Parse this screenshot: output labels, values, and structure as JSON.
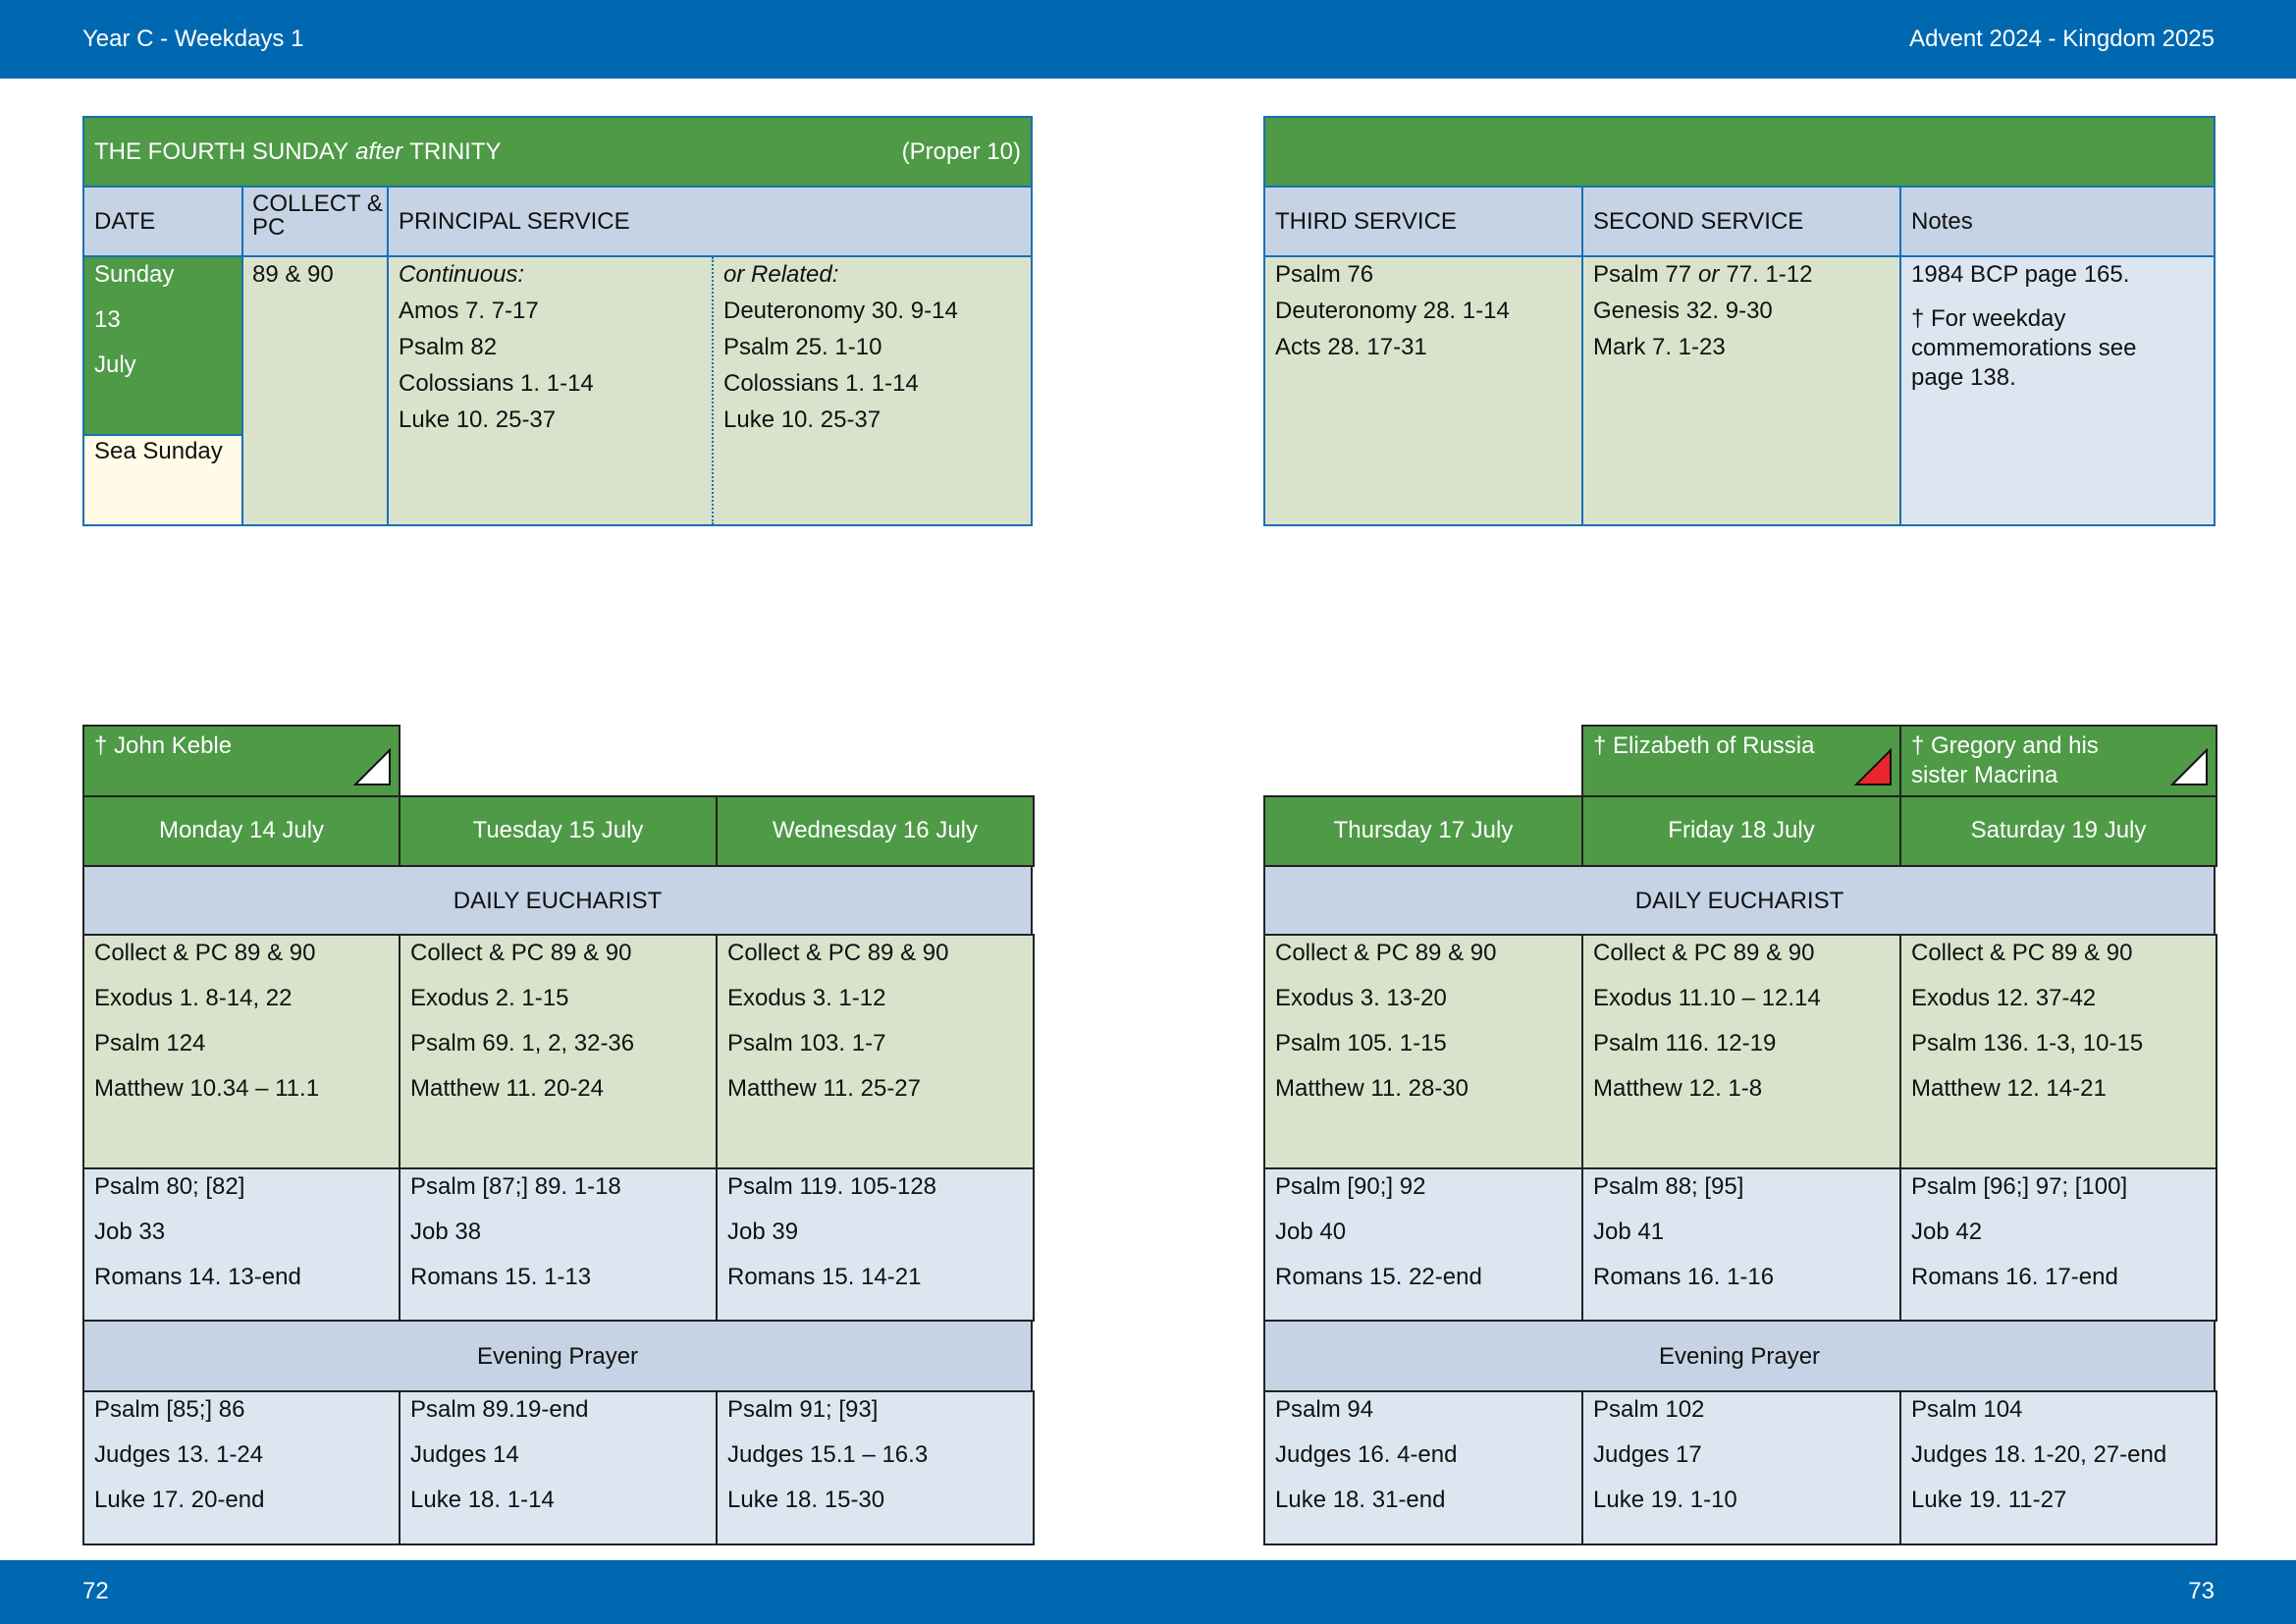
{
  "header": {
    "left": "Year C - Weekdays 1",
    "right": "Advent  2024 - Kingdom 2025"
  },
  "footer": {
    "left_page": "72",
    "right_page": "73"
  },
  "sunday": {
    "title": {
      "main": "THE FOURTH SUNDAY",
      "italic": "after",
      "end": "TRINITY"
    },
    "proper": "(Proper 10)",
    "headers": {
      "date": "DATE",
      "collect": "COLLECT & PC",
      "principal": "PRINCIPAL SERVICE",
      "third": "THIRD SERVICE",
      "second": "SECOND SERVICE",
      "notes": "Notes"
    },
    "date": [
      "Sunday",
      "13",
      "July"
    ],
    "sea": "Sea Sunday",
    "collect": "89 & 90",
    "continuous": {
      "label": "Continuous:",
      "lines": [
        "Amos 7. 7-17",
        "Psalm 82",
        "Colossians 1. 1-14",
        "Luke 10. 25-37"
      ]
    },
    "related": {
      "label": "or Related:",
      "lines": [
        "Deuteronomy 30. 9-14",
        "Psalm 25. 1-10",
        "Colossians 1. 1-14",
        "Luke 10. 25-37"
      ]
    },
    "third": [
      "Psalm 76",
      "Deuteronomy 28. 1-14",
      "Acts 28. 17-31"
    ],
    "second": {
      "first": {
        "a": "Psalm 77",
        "or": "or",
        "b": "77. 1-12"
      },
      "lines": [
        "Genesis 32. 9-30",
        "Mark 7. 1-23"
      ]
    },
    "notes": [
      "1984 BCP page 165.",
      "† For weekday commemorations see page 138."
    ]
  },
  "weeks": [
    {
      "eucharist_label": "DAILY EUCHARIST",
      "evening_label": "Evening Prayer",
      "days": [
        {
          "date": "Monday 14 July",
          "commemoration": "† John Keble",
          "marker": "#ffffff",
          "eucharist": [
            "Collect & PC 89 & 90",
            "Exodus 1. 8-14, 22",
            "Psalm 124",
            "Matthew 10.34 – 11.1"
          ],
          "morning": [
            "Psalm 80; [82]",
            "Job 33",
            "Romans 14. 13-end"
          ],
          "evening": [
            "Psalm [85;] 86",
            "Judges 13. 1-24",
            "Luke 17. 20-end"
          ]
        },
        {
          "date": "Tuesday 15 July",
          "eucharist": [
            "Collect & PC 89 & 90",
            "Exodus 2. 1-15",
            "Psalm 69. 1, 2, 32-36",
            "Matthew 11. 20-24"
          ],
          "morning": [
            "Psalm [87;] 89. 1-18",
            "Job 38",
            "Romans 15. 1-13"
          ],
          "evening": [
            "Psalm 89.19-end",
            "Judges 14",
            "Luke 18. 1-14"
          ]
        },
        {
          "date": "Wednesday 16 July",
          "eucharist": [
            "Collect & PC 89 & 90",
            "Exodus 3. 1-12",
            "Psalm 103. 1-7",
            "Matthew 11. 25-27"
          ],
          "morning": [
            "Psalm 119. 105-128",
            "Job 39",
            "Romans 15. 14-21"
          ],
          "evening": [
            "Psalm 91; [93]",
            "Judges 15.1 – 16.3",
            "Luke 18. 15-30"
          ]
        }
      ]
    },
    {
      "eucharist_label": "DAILY EUCHARIST",
      "evening_label": "Evening Prayer",
      "days": [
        {
          "date": "Thursday 17 July",
          "eucharist": [
            "Collect & PC 89 & 90",
            "Exodus 3. 13-20",
            "Psalm 105. 1-15",
            "Matthew 11. 28-30"
          ],
          "morning": [
            "Psalm [90;] 92",
            "Job 40",
            "Romans 15. 22-end"
          ],
          "evening": [
            "Psalm 94",
            "Judges 16. 4-end",
            "Luke 18. 31-end"
          ]
        },
        {
          "date": "Friday 18 July",
          "commemoration": "† Elizabeth of Russia",
          "marker": "#e8262b",
          "eucharist": [
            "Collect & PC 89 & 90",
            "Exodus 11.10 – 12.14",
            "Psalm 116. 12-19",
            "Matthew 12. 1-8"
          ],
          "morning": [
            "Psalm 88; [95]",
            "Job 41",
            "Romans 16. 1-16"
          ],
          "evening": [
            "Psalm 102",
            "Judges 17",
            "Luke 19. 1-10"
          ]
        },
        {
          "date": "Saturday 19 July",
          "commemoration": "† Gregory and his sister Macrina",
          "marker": "#ffffff",
          "eucharist": [
            "Collect & PC 89 & 90",
            "Exodus 12. 37-42",
            "Psalm 136. 1-3, 10-15",
            "Matthew 12. 14-21"
          ],
          "morning": [
            "Psalm [96;] 97; [100]",
            "Job 42",
            "Romans 16. 17-end"
          ],
          "evening": [
            "Psalm 104",
            "Judges 18. 1-20, 27-end",
            "Luke 19. 11-27"
          ]
        }
      ]
    }
  ]
}
